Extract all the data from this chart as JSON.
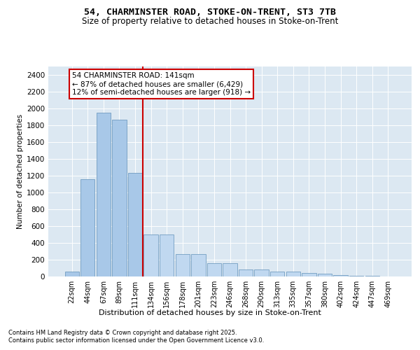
{
  "title_line1": "54, CHARMINSTER ROAD, STOKE-ON-TRENT, ST3 7TB",
  "title_line2": "Size of property relative to detached houses in Stoke-on-Trent",
  "xlabel": "Distribution of detached houses by size in Stoke-on-Trent",
  "ylabel": "Number of detached properties",
  "categories": [
    "22sqm",
    "44sqm",
    "67sqm",
    "89sqm",
    "111sqm",
    "134sqm",
    "156sqm",
    "178sqm",
    "201sqm",
    "223sqm",
    "246sqm",
    "268sqm",
    "290sqm",
    "313sqm",
    "335sqm",
    "357sqm",
    "380sqm",
    "402sqm",
    "424sqm",
    "447sqm",
    "469sqm"
  ],
  "values": [
    60,
    1160,
    1950,
    1870,
    1230,
    500,
    500,
    270,
    270,
    155,
    155,
    80,
    80,
    60,
    60,
    40,
    30,
    15,
    8,
    5,
    3
  ],
  "bar_color_left": "#a8c8e8",
  "bar_color_right": "#c0d8f0",
  "bar_edge_color": "#6090b8",
  "highlight_index": 5,
  "vline_color": "#cc0000",
  "annotation_text": "54 CHARMINSTER ROAD: 141sqm\n← 87% of detached houses are smaller (6,429)\n12% of semi-detached houses are larger (918) →",
  "ylim": [
    0,
    2500
  ],
  "yticks": [
    0,
    200,
    400,
    600,
    800,
    1000,
    1200,
    1400,
    1600,
    1800,
    2000,
    2200,
    2400
  ],
  "background_color": "#dce8f2",
  "grid_color": "#ffffff",
  "footer_line1": "Contains HM Land Registry data © Crown copyright and database right 2025.",
  "footer_line2": "Contains public sector information licensed under the Open Government Licence v3.0."
}
